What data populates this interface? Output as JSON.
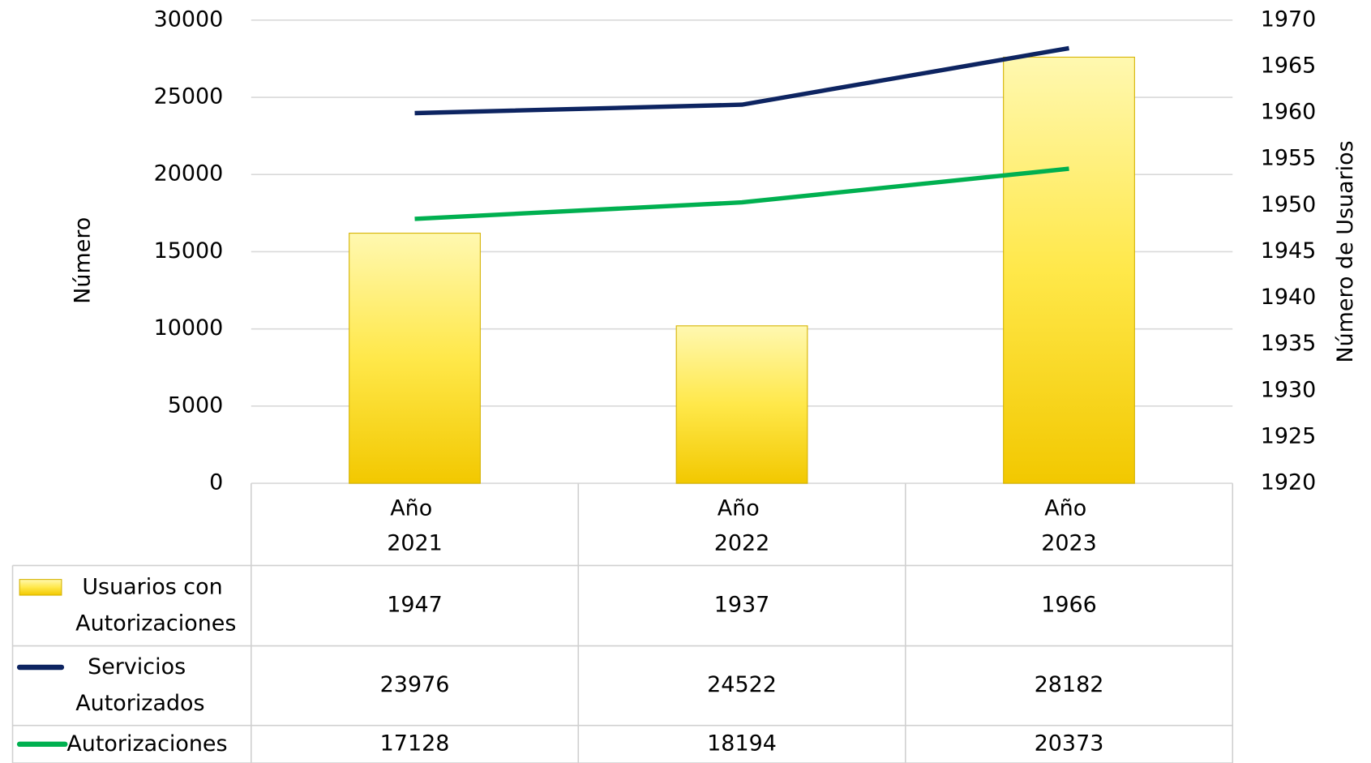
{
  "chart_data": {
    "type": "bar-line-table",
    "categories": [
      "Año 2021",
      "Año 2022",
      "Año 2023"
    ],
    "ylabel": "Número",
    "y2label": "Número de Usuarios",
    "ylim": [
      0,
      30000
    ],
    "yticks": [
      0,
      5000,
      10000,
      15000,
      20000,
      25000,
      30000
    ],
    "y2lim": [
      1920,
      1970
    ],
    "y2ticks": [
      1920,
      1925,
      1930,
      1935,
      1940,
      1945,
      1950,
      1955,
      1960,
      1965,
      1970
    ],
    "grid": true,
    "series": [
      {
        "name": "Usuarios con Autorizaciones",
        "type": "bar",
        "axis": "y2",
        "color": "#f5d000",
        "values": [
          1947,
          1937,
          1966
        ]
      },
      {
        "name": "Servicios Autorizados",
        "type": "line",
        "color": "#0d2461",
        "values": [
          23976,
          24522,
          28182
        ]
      },
      {
        "name": "Autorizaciones",
        "type": "line",
        "color": "#00b050",
        "values": [
          17128,
          18194,
          20373
        ]
      }
    ]
  }
}
